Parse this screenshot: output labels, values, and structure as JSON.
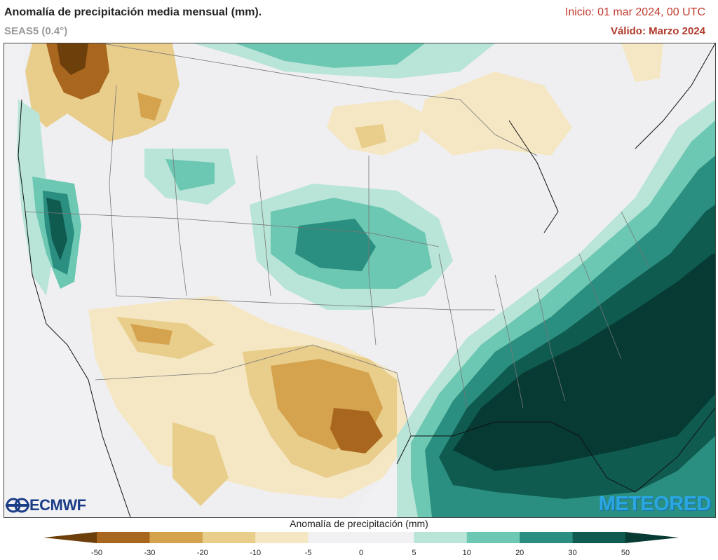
{
  "header": {
    "title": "Anomalía de precipitación media mensual (mm).",
    "subtitle": "SEAS5 (0.4°)",
    "init": "Inicio: 01 mar 2024, 00 UTC",
    "valid": "Válido: Marzo 2024"
  },
  "logos": {
    "left": "ECMWF",
    "right": "METEORED"
  },
  "colorbar": {
    "title": "Anomalía de precipitación (mm)",
    "ticks": [
      "-50",
      "-30",
      "-20",
      "-10",
      "-5",
      "0",
      "5",
      "10",
      "20",
      "30",
      "50"
    ],
    "colors": [
      "#6d3f0a",
      "#a9661e",
      "#d5a24e",
      "#e8cd8b",
      "#f5e7c4",
      "#f1f1f4",
      "#f1f1f4",
      "#b9e4d8",
      "#6cc8b2",
      "#2a8e80",
      "#0f5b50",
      "#063a32"
    ]
  }
}
